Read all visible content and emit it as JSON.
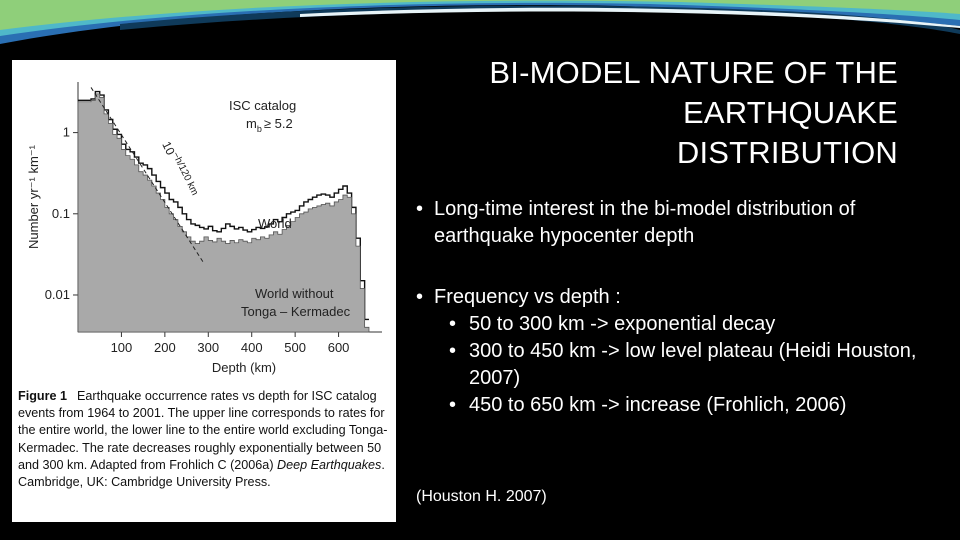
{
  "slide": {
    "title_lines": [
      "BI-MODEL NATURE OF THE",
      "EARTHQUAKE",
      "DISTRIBUTION"
    ],
    "bullets": [
      "Long-time interest in the bi-model distribution of earthquake hypocenter depth",
      "Frequency vs depth :"
    ],
    "sub_bullets": [
      "50 to 300 km -> exponential decay",
      "300 to 450 km -> low level plateau (Heidi Houston, 2007)",
      "450 to 650 km -> increase (Frohlich, 2006)"
    ],
    "reference": "(Houston H. 2007)"
  },
  "figure": {
    "caption_label": "Figure 1",
    "caption_text": "Earthquake occurrence rates vs depth for ISC catalog events from 1964 to 2001. The upper line corresponds to rates for the entire world, the lower line to the entire world excluding Tonga-Kermadec. The rate decreases roughly exponentially between 50 and 300 km. Adapted from Frohlich C (2006a) ",
    "caption_book": "Deep Earthquakes",
    "caption_tail": ". Cambridge, UK: Cambridge University Press."
  },
  "chart_data": {
    "type": "area",
    "y_scale": "log",
    "xlabel": "Depth (km)",
    "ylabel": "Number yr⁻¹ km⁻¹",
    "x_ticks": [
      100,
      200,
      300,
      400,
      500,
      600
    ],
    "y_ticks": [
      {
        "value": 1,
        "label": "1"
      },
      {
        "value": 0.1,
        "label": "0.1"
      },
      {
        "value": 0.01,
        "label": "0.01"
      }
    ],
    "xlim": [
      0,
      700
    ],
    "ylim": [
      0.0035,
      4.2
    ],
    "annotations": {
      "catalog_line1": "ISC catalog",
      "catalog_line2": "m",
      "catalog_sub": "b",
      "catalog_cond": "≥ 5.2",
      "trend_label": "10",
      "trend_exp": "−h/120 km",
      "world_label": "World",
      "without_line1": "World without",
      "without_line2": "Tonga – Kermadec"
    },
    "series": [
      {
        "name": "World",
        "x": [
          5,
          25,
          35,
          45,
          55,
          65,
          75,
          85,
          95,
          105,
          115,
          125,
          135,
          145,
          155,
          165,
          175,
          185,
          195,
          205,
          215,
          225,
          235,
          245,
          255,
          265,
          275,
          285,
          295,
          305,
          315,
          325,
          335,
          345,
          355,
          365,
          375,
          385,
          395,
          405,
          415,
          425,
          435,
          445,
          455,
          465,
          475,
          485,
          495,
          505,
          515,
          525,
          535,
          545,
          555,
          565,
          575,
          585,
          595,
          605,
          615,
          625,
          635,
          645,
          655,
          665
        ],
        "values": [
          2.5,
          2.5,
          2.6,
          3.2,
          2.9,
          1.9,
          1.45,
          1.1,
          0.95,
          0.72,
          0.62,
          0.58,
          0.5,
          0.42,
          0.4,
          0.36,
          0.3,
          0.25,
          0.21,
          0.18,
          0.15,
          0.14,
          0.12,
          0.1,
          0.085,
          0.075,
          0.072,
          0.068,
          0.065,
          0.07,
          0.062,
          0.06,
          0.066,
          0.075,
          0.07,
          0.065,
          0.068,
          0.063,
          0.06,
          0.064,
          0.068,
          0.066,
          0.069,
          0.075,
          0.085,
          0.08,
          0.09,
          0.1,
          0.105,
          0.11,
          0.125,
          0.14,
          0.15,
          0.16,
          0.17,
          0.175,
          0.17,
          0.16,
          0.18,
          0.2,
          0.22,
          0.18,
          0.12,
          0.05,
          0.015,
          0.005
        ]
      },
      {
        "name": "World without Tonga – Kermadec",
        "x": [
          5,
          25,
          35,
          45,
          55,
          65,
          75,
          85,
          95,
          105,
          115,
          125,
          135,
          145,
          155,
          165,
          175,
          185,
          195,
          205,
          215,
          225,
          235,
          245,
          255,
          265,
          275,
          285,
          295,
          305,
          315,
          325,
          335,
          345,
          355,
          365,
          375,
          385,
          395,
          405,
          415,
          425,
          435,
          445,
          455,
          465,
          475,
          485,
          495,
          505,
          515,
          525,
          535,
          545,
          555,
          565,
          575,
          585,
          595,
          605,
          615,
          625,
          635,
          645,
          655,
          665
        ],
        "values": [
          2.4,
          2.4,
          2.5,
          3.0,
          2.7,
          1.7,
          1.3,
          0.95,
          0.85,
          0.62,
          0.52,
          0.47,
          0.4,
          0.33,
          0.3,
          0.26,
          0.22,
          0.18,
          0.15,
          0.12,
          0.1,
          0.085,
          0.07,
          0.06,
          0.052,
          0.046,
          0.043,
          0.046,
          0.052,
          0.047,
          0.045,
          0.05,
          0.046,
          0.043,
          0.047,
          0.044,
          0.048,
          0.046,
          0.044,
          0.05,
          0.048,
          0.052,
          0.05,
          0.055,
          0.06,
          0.056,
          0.064,
          0.072,
          0.08,
          0.09,
          0.1,
          0.105,
          0.115,
          0.12,
          0.125,
          0.13,
          0.135,
          0.125,
          0.14,
          0.15,
          0.17,
          0.16,
          0.1,
          0.04,
          0.012,
          0.004
        ]
      }
    ]
  }
}
